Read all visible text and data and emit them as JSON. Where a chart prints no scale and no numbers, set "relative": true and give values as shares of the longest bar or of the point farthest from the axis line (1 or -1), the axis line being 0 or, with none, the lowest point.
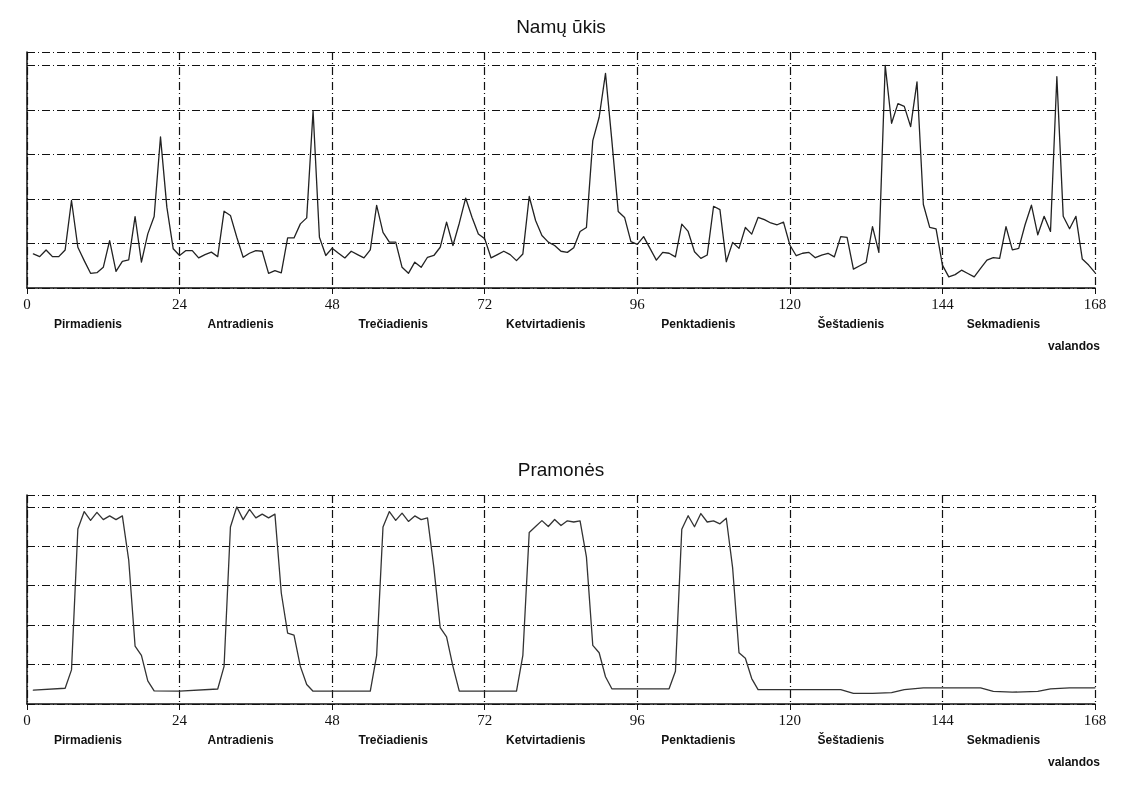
{
  "chart_data": [
    {
      "type": "line",
      "title": "Namų ūkis",
      "xlabel": "valandos",
      "relative": true,
      "grid": true,
      "marker": "none",
      "line_style": "solid",
      "xlim": [
        0,
        168
      ],
      "xticks": [
        0,
        24,
        48,
        72,
        96,
        120,
        144,
        168
      ],
      "annotations": [
        "Pirmadienis",
        "Antradienis",
        "Trečiadienis",
        "Ketvirtadienis",
        "Penktadienis",
        "Šeštadienis",
        "Sekmadienis"
      ],
      "x": [
        1,
        2,
        3,
        4,
        5,
        6,
        7,
        8,
        9,
        10,
        11,
        12,
        13,
        14,
        15,
        16,
        17,
        18,
        19,
        20,
        21,
        22,
        23,
        24,
        25,
        26,
        27,
        28,
        29,
        30,
        31,
        32,
        33,
        34,
        35,
        36,
        37,
        38,
        39,
        40,
        41,
        42,
        43,
        44,
        45,
        46,
        47,
        48,
        49,
        50,
        51,
        52,
        53,
        54,
        55,
        56,
        57,
        58,
        59,
        60,
        61,
        62,
        63,
        64,
        65,
        66,
        67,
        68,
        69,
        70,
        71,
        72,
        73,
        74,
        75,
        76,
        77,
        78,
        79,
        80,
        81,
        82,
        83,
        84,
        85,
        86,
        87,
        88,
        89,
        90,
        91,
        92,
        93,
        94,
        95,
        96,
        97,
        98,
        99,
        100,
        101,
        102,
        103,
        104,
        105,
        106,
        107,
        108,
        109,
        110,
        111,
        112,
        113,
        114,
        115,
        116,
        117,
        118,
        119,
        120,
        121,
        122,
        123,
        124,
        125,
        126,
        127,
        128,
        129,
        130,
        131,
        132,
        133,
        134,
        135,
        136,
        137,
        138,
        139,
        140,
        141,
        142,
        143,
        144,
        145,
        146,
        147,
        148,
        149,
        150,
        151,
        152,
        153,
        154,
        155,
        156,
        157,
        158,
        159,
        160,
        161,
        162,
        163,
        164,
        165,
        166,
        167,
        168
      ],
      "series": [
        {
          "color": "#222222",
          "values": [
            0.153,
            0.141,
            0.171,
            0.141,
            0.141,
            0.171,
            0.393,
            0.183,
            0.123,
            0.066,
            0.069,
            0.093,
            0.213,
            0.075,
            0.12,
            0.126,
            0.321,
            0.116,
            0.243,
            0.321,
            0.679,
            0.363,
            0.176,
            0.146,
            0.168,
            0.168,
            0.135,
            0.15,
            0.161,
            0.141,
            0.345,
            0.326,
            0.228,
            0.138,
            0.156,
            0.168,
            0.165,
            0.066,
            0.078,
            0.068,
            0.225,
            0.225,
            0.288,
            0.315,
            0.796,
            0.228,
            0.146,
            0.179,
            0.156,
            0.135,
            0.165,
            0.15,
            0.135,
            0.171,
            0.371,
            0.25,
            0.206,
            0.206,
            0.093,
            0.066,
            0.116,
            0.093,
            0.138,
            0.146,
            0.183,
            0.296,
            0.191,
            0.291,
            0.404,
            0.318,
            0.243,
            0.221,
            0.135,
            0.15,
            0.165,
            0.15,
            0.123,
            0.153,
            0.411,
            0.303,
            0.236,
            0.206,
            0.191,
            0.165,
            0.16,
            0.181,
            0.254,
            0.272,
            0.662,
            0.767,
            0.964,
            0.662,
            0.344,
            0.317,
            0.208,
            0.196,
            0.231,
            0.178,
            0.125,
            0.16,
            0.156,
            0.14,
            0.287,
            0.254,
            0.163,
            0.133,
            0.148,
            0.367,
            0.352,
            0.118,
            0.205,
            0.178,
            0.272,
            0.242,
            0.317,
            0.307,
            0.292,
            0.284,
            0.296,
            0.193,
            0.145,
            0.156,
            0.16,
            0.136,
            0.148,
            0.156,
            0.14,
            0.231,
            0.227,
            0.085,
            0.1,
            0.115,
            0.276,
            0.16,
            1.0,
            0.74,
            0.828,
            0.816,
            0.725,
            0.926,
            0.375,
            0.272,
            0.266,
            0.103,
            0.05,
            0.06,
            0.08,
            0.065,
            0.05,
            0.088,
            0.125,
            0.136,
            0.133,
            0.276,
            0.171,
            0.178,
            0.284,
            0.372,
            0.239,
            0.322,
            0.254,
            0.949,
            0.322,
            0.266,
            0.322,
            0.13,
            0.103,
            0.069
          ]
        }
      ]
    },
    {
      "type": "line",
      "title": "Pramonės",
      "xlabel": "valandos",
      "relative": true,
      "grid": true,
      "marker": "none",
      "line_style": "solid",
      "xlim": [
        0,
        168
      ],
      "xticks": [
        0,
        24,
        48,
        72,
        96,
        120,
        144,
        168
      ],
      "annotations": [
        "Pirmadienis",
        "Antradienis",
        "Trečiadienis",
        "Ketvirtadienis",
        "Penktadienis",
        "Šeštadienis",
        "Sekmadienis"
      ],
      "series": [
        {
          "color": "#333333",
          "x": [
            1,
            6,
            7,
            8,
            9,
            10,
            11,
            12,
            13,
            14,
            15,
            16,
            17,
            18,
            19,
            20,
            24,
            30,
            31,
            32,
            33,
            34,
            35,
            36,
            37,
            38,
            39,
            40,
            41,
            42,
            43,
            44,
            45,
            54,
            55,
            56,
            57,
            58,
            59,
            60,
            61,
            62,
            63,
            64,
            65,
            66,
            67,
            68,
            77,
            78,
            79,
            80,
            81,
            82,
            83,
            84,
            85,
            86,
            87,
            88,
            89,
            90,
            91,
            92,
            101,
            102,
            103,
            104,
            105,
            106,
            107,
            108,
            109,
            110,
            111,
            112,
            113,
            114,
            115,
            120,
            124,
            128,
            130,
            133,
            136,
            138,
            141,
            146,
            150,
            152,
            155,
            159,
            161,
            164,
            168
          ],
          "values": [
            0.07,
            0.08,
            0.173,
            0.888,
            0.976,
            0.931,
            0.972,
            0.935,
            0.954,
            0.935,
            0.954,
            0.73,
            0.294,
            0.247,
            0.117,
            0.067,
            0.065,
            0.076,
            0.191,
            0.898,
            1.0,
            0.935,
            0.987,
            0.944,
            0.963,
            0.944,
            0.963,
            0.563,
            0.359,
            0.349,
            0.191,
            0.099,
            0.065,
            0.065,
            0.247,
            0.898,
            0.976,
            0.931,
            0.968,
            0.926,
            0.954,
            0.935,
            0.944,
            0.693,
            0.387,
            0.34,
            0.191,
            0.065,
            0.065,
            0.247,
            0.87,
            0.9,
            0.93,
            0.9,
            0.936,
            0.905,
            0.929,
            0.923,
            0.929,
            0.746,
            0.297,
            0.26,
            0.138,
            0.077,
            0.077,
            0.166,
            0.886,
            0.955,
            0.899,
            0.966,
            0.923,
            0.929,
            0.914,
            0.942,
            0.69,
            0.26,
            0.232,
            0.129,
            0.073,
            0.073,
            0.073,
            0.073,
            0.054,
            0.054,
            0.058,
            0.073,
            0.082,
            0.082,
            0.082,
            0.064,
            0.06,
            0.064,
            0.077,
            0.082,
            0.082
          ]
        }
      ]
    }
  ]
}
